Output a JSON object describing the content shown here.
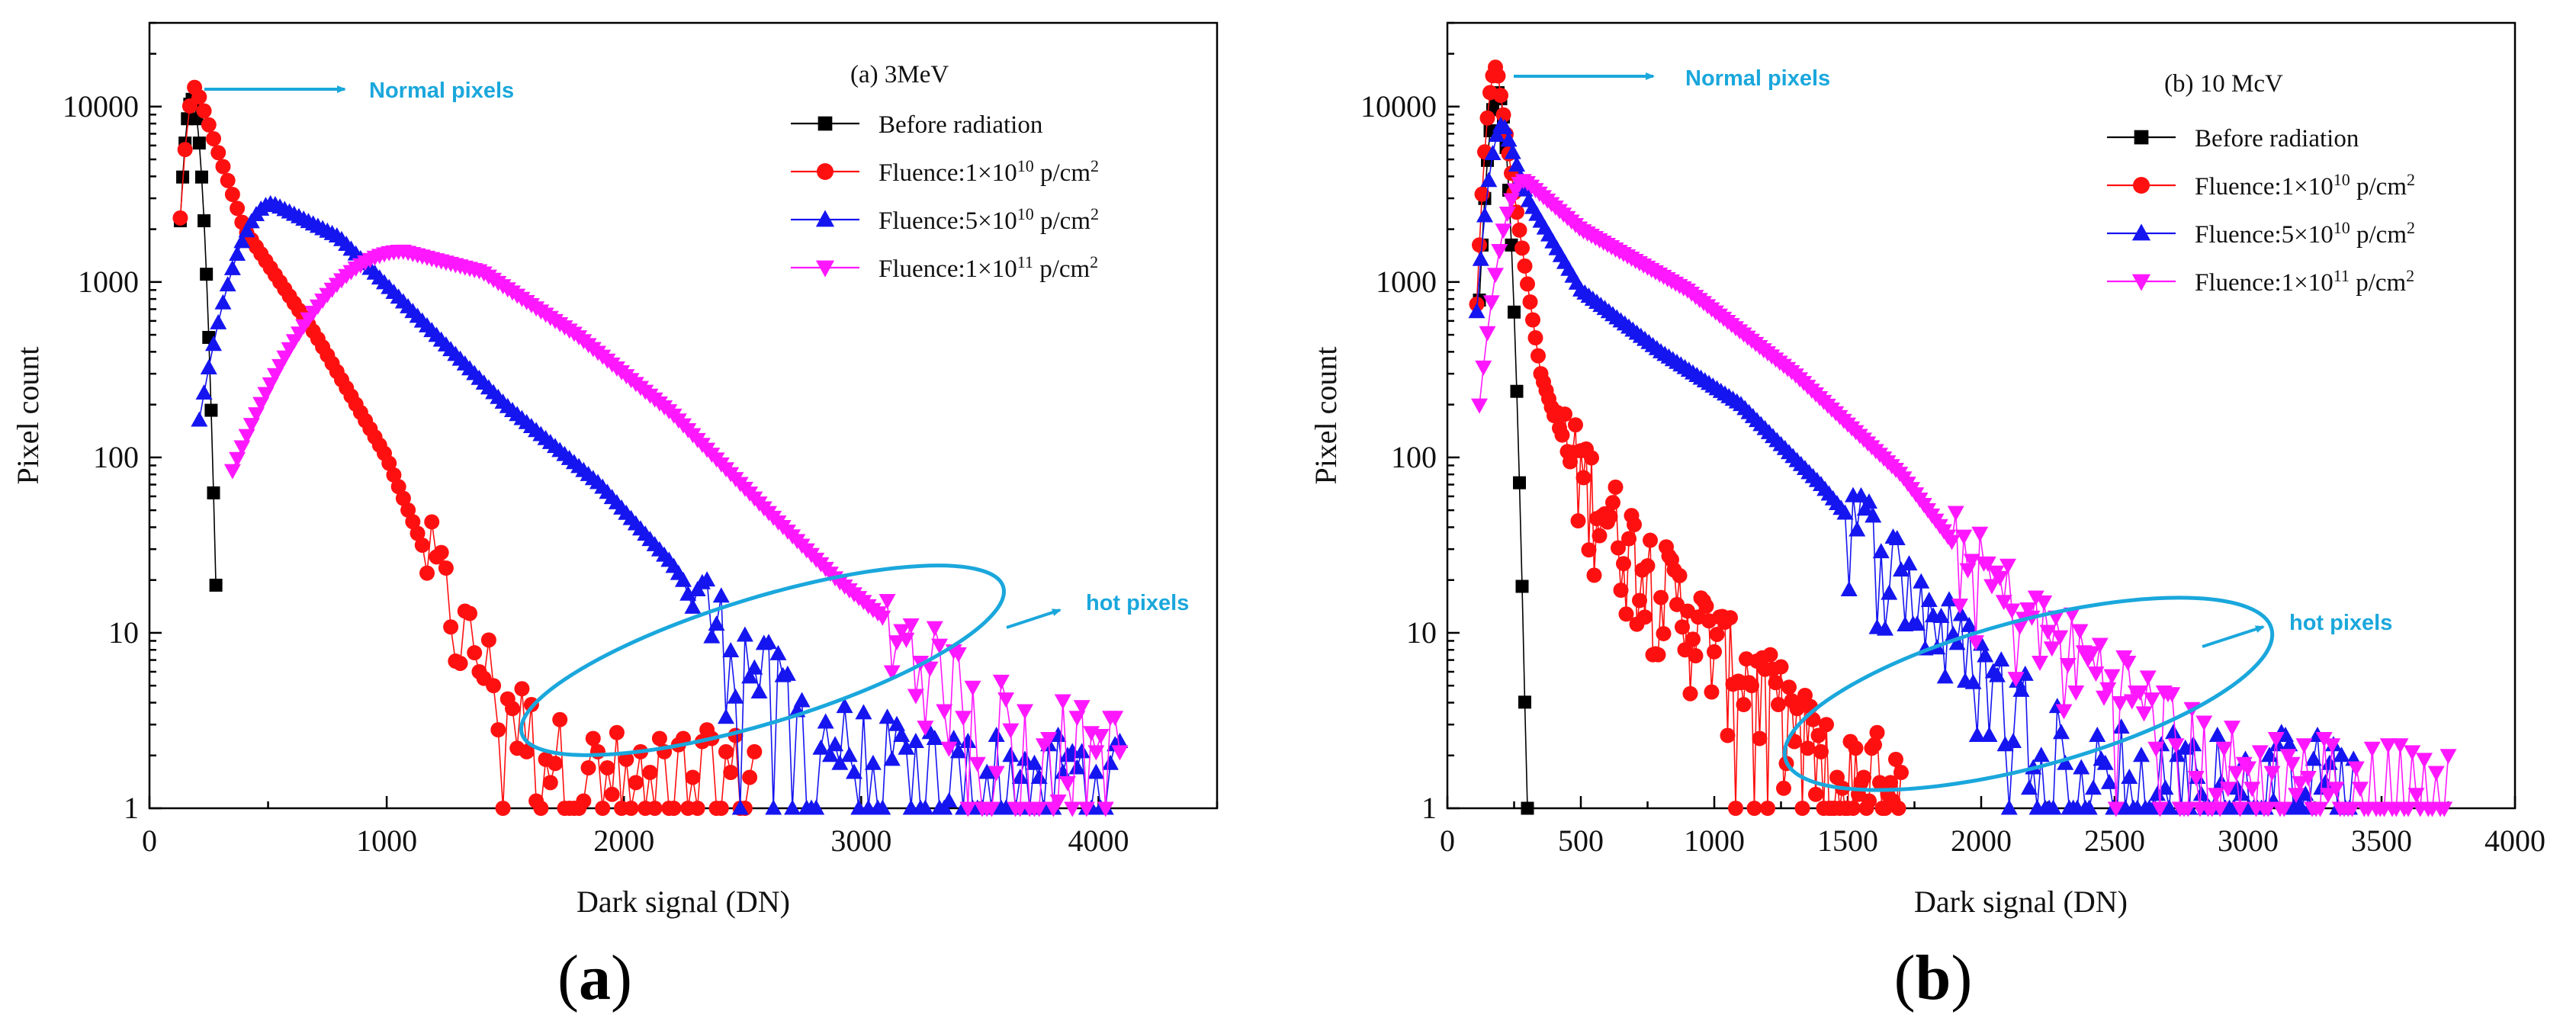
{
  "chart_data": [
    {
      "type": "scatter",
      "panel_letter": "a",
      "legend_title": "(a)    3MeV",
      "xlabel": "Dark signal (DN)",
      "ylabel": "Pixel count",
      "xlim": [
        0,
        4500
      ],
      "ylim": [
        1,
        30000
      ],
      "yscale": "log",
      "xticks": [
        0,
        1000,
        2000,
        3000,
        4000
      ],
      "yticks": [
        1,
        10,
        100,
        1000,
        10000
      ],
      "annotations": [
        {
          "text": "Normal pixels",
          "target_x": 230,
          "target_y": 11000,
          "color": "#1aa7dc"
        },
        {
          "text": "hot pixels",
          "ellipse_center": [
            2650,
            4
          ],
          "color": "#1aa7dc"
        }
      ],
      "series": [
        {
          "name": "Before radiation",
          "color": "#000000",
          "marker": "square",
          "peak_x": 180,
          "peak_y": 11000,
          "sigma_left": 28,
          "sigma_right": 28,
          "step": 10,
          "x_start": 130,
          "x_end": 285,
          "floor": 1
        },
        {
          "name": "Fluence:1×10^10 p/cm^2",
          "color": "#ff1010",
          "marker": "circle",
          "peak_x": 195,
          "peak_y": 13000,
          "rise_sigma": 35,
          "decay_points": [
            [
              195,
              13000
            ],
            [
              400,
              2000
            ],
            [
              700,
              500
            ],
            [
              1000,
              100
            ],
            [
              1300,
              10
            ],
            [
              1500,
              4
            ],
            [
              1650,
              2
            ],
            [
              1900,
              1.5
            ]
          ],
          "step": 20,
          "x_start": 130,
          "x_end": 2550,
          "noise_from": 1150
        },
        {
          "name": "Fluence:5×10^10 p/cm^2",
          "color": "#1515f0",
          "marker": "triangle-up",
          "peak_x": 520,
          "peak_y": 2800,
          "rise_sigma": 130,
          "decay_points": [
            [
              520,
              2800
            ],
            [
              800,
              1800
            ],
            [
              1100,
              700
            ],
            [
              1500,
              200
            ],
            [
              1900,
              70
            ],
            [
              2200,
              25
            ],
            [
              2400,
              10
            ],
            [
              2600,
              5
            ],
            [
              2800,
              2.5
            ],
            [
              3300,
              1.5
            ]
          ],
          "step": 20,
          "x_start": 210,
          "x_end": 4100,
          "noise_from": 2250
        },
        {
          "name": "Fluence:1×10^11 p/cm^2",
          "color": "#ff18ff",
          "marker": "triangle-down",
          "peak_x": 1070,
          "peak_y": 1500,
          "rise_sigma": 300,
          "decay_points": [
            [
              1070,
              1500
            ],
            [
              1400,
              1150
            ],
            [
              1800,
              500
            ],
            [
              2200,
              180
            ],
            [
              2600,
              50
            ],
            [
              2900,
              20
            ],
            [
              3100,
              12
            ],
            [
              3300,
              6
            ],
            [
              3600,
              3
            ],
            [
              4000,
              2
            ]
          ],
          "step": 20,
          "x_start": 350,
          "x_end": 4100,
          "noise_from": 3100
        }
      ]
    },
    {
      "type": "scatter",
      "panel_letter": "b",
      "legend_title": "(b)    10 McV",
      "xlabel": "Dark signal (DN)",
      "ylabel": "Pixel count",
      "xlim": [
        0,
        4000
      ],
      "ylim": [
        1,
        30000
      ],
      "yscale": "log",
      "xticks": [
        0,
        500,
        1000,
        1500,
        2000,
        2500,
        3000,
        3500,
        4000
      ],
      "yticks": [
        1,
        10,
        100,
        1000,
        10000
      ],
      "annotations": [
        {
          "text": "Normal pixels",
          "target_x": 230,
          "target_y": 11000,
          "color": "#1aa7dc"
        },
        {
          "text": "hot pixels",
          "ellipse_center": [
            1850,
            4
          ],
          "color": "#1aa7dc"
        }
      ],
      "series": [
        {
          "name": "Before radiation",
          "color": "#000000",
          "marker": "square",
          "peak_x": 190,
          "peak_y": 12000,
          "sigma_left": 30,
          "sigma_right": 25,
          "step": 10,
          "x_start": 120,
          "x_end": 300,
          "floor": 1
        },
        {
          "name": "Fluence:1×10^10 p/cm^2",
          "color": "#ff1010",
          "marker": "circle",
          "peak_x": 185,
          "peak_y": 17000,
          "rise_sigma": 30,
          "decay_points": [
            [
              185,
              17000
            ],
            [
              260,
              2500
            ],
            [
              350,
              300
            ],
            [
              450,
              100
            ],
            [
              650,
              35
            ],
            [
              850,
              15
            ],
            [
              1000,
              8
            ],
            [
              1150,
              5
            ],
            [
              1300,
              3
            ],
            [
              1450,
              1.5
            ]
          ],
          "step": 10,
          "x_start": 110,
          "x_end": 1700,
          "noise_from": 400
        },
        {
          "name": "Fluence:5×10^10 p/cm^2",
          "color": "#1515f0",
          "marker": "triangle-up",
          "peak_x": 210,
          "peak_y": 8000,
          "rise_sigma": 45,
          "decay_points": [
            [
              210,
              8000
            ],
            [
              300,
              3000
            ],
            [
              500,
              900
            ],
            [
              800,
              400
            ],
            [
              1100,
              200
            ],
            [
              1400,
              70
            ],
            [
              1700,
              20
            ],
            [
              1900,
              8
            ],
            [
              2100,
              4
            ],
            [
              2300,
              2.5
            ],
            [
              2600,
              1.5
            ]
          ],
          "step": 15,
          "x_start": 110,
          "x_end": 3400,
          "noise_from": 1500
        },
        {
          "name": "Fluence:1×10^11 p/cm^2",
          "color": "#ff18ff",
          "marker": "triangle-down",
          "peak_x": 290,
          "peak_y": 3800,
          "rise_sigma": 70,
          "decay_points": [
            [
              290,
              3800
            ],
            [
              500,
              2000
            ],
            [
              900,
              900
            ],
            [
              1300,
              300
            ],
            [
              1700,
              80
            ],
            [
              2000,
              20
            ],
            [
              2200,
              10
            ],
            [
              2500,
              5
            ],
            [
              2800,
              2
            ],
            [
              3000,
              1.5
            ]
          ],
          "step": 15,
          "x_start": 120,
          "x_end": 3750,
          "noise_from": 1900
        }
      ]
    }
  ],
  "captions": [
    {
      "open": "(",
      "letter": "a",
      "close": ")"
    },
    {
      "open": "(",
      "letter": "b",
      "close": ")"
    }
  ]
}
